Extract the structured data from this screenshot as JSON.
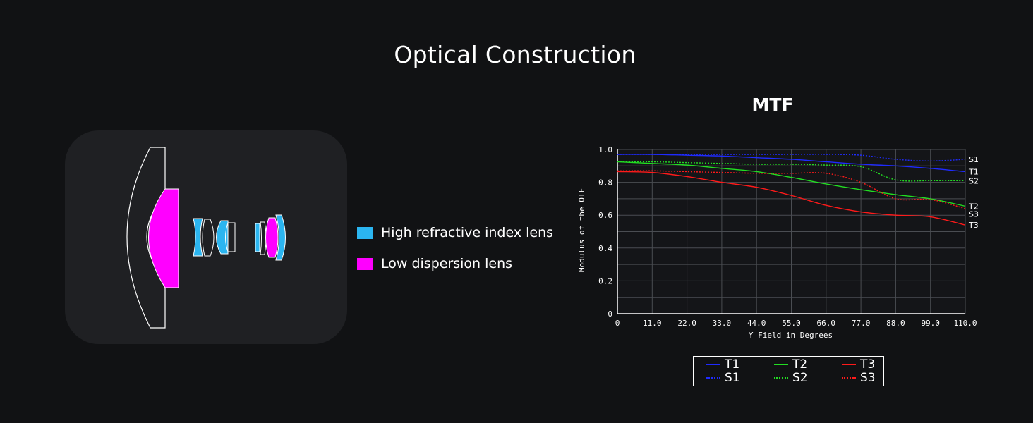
{
  "page": {
    "title": "Optical Construction"
  },
  "lens_legend": [
    {
      "label": "High refractive index lens",
      "color": "#2bb5f0"
    },
    {
      "label": "Low dispersion lens",
      "color": "#ff00ff"
    }
  ],
  "chart_data": {
    "type": "line",
    "title": "MTF",
    "xlabel": "Y Field in Degrees",
    "ylabel": "Modulus of the OTF",
    "xlim": [
      0,
      110
    ],
    "ylim": [
      0,
      1.0
    ],
    "x_ticks": [
      "0",
      "11.0",
      "22.0",
      "33.0",
      "44.0",
      "55.0",
      "66.0",
      "77.0",
      "88.0",
      "99.0",
      "110.0"
    ],
    "y_ticks": [
      "0",
      "0.2",
      "0.4",
      "0.6",
      "0.8",
      "1.0"
    ],
    "grid": true,
    "x": [
      0,
      11,
      22,
      33,
      44,
      55,
      66,
      77,
      88,
      99,
      110
    ],
    "series": [
      {
        "name": "T1",
        "color": "#1f2bff",
        "style": "solid",
        "values": [
          0.97,
          0.97,
          0.965,
          0.96,
          0.95,
          0.94,
          0.925,
          0.91,
          0.9,
          0.885,
          0.865
        ]
      },
      {
        "name": "S1",
        "color": "#1f2bff",
        "style": "dotted",
        "values": [
          0.97,
          0.97,
          0.97,
          0.97,
          0.97,
          0.97,
          0.97,
          0.965,
          0.94,
          0.93,
          0.94
        ]
      },
      {
        "name": "T2",
        "color": "#22dd22",
        "style": "solid",
        "values": [
          0.925,
          0.915,
          0.905,
          0.885,
          0.865,
          0.83,
          0.79,
          0.755,
          0.725,
          0.7,
          0.655
        ]
      },
      {
        "name": "S2",
        "color": "#22dd22",
        "style": "dotted",
        "values": [
          0.925,
          0.925,
          0.92,
          0.915,
          0.91,
          0.91,
          0.905,
          0.895,
          0.815,
          0.81,
          0.81
        ]
      },
      {
        "name": "T3",
        "color": "#ff1a1a",
        "style": "solid",
        "values": [
          0.865,
          0.86,
          0.835,
          0.8,
          0.77,
          0.72,
          0.66,
          0.62,
          0.6,
          0.59,
          0.54
        ]
      },
      {
        "name": "S3",
        "color": "#ff1a1a",
        "style": "dotted",
        "values": [
          0.87,
          0.87,
          0.865,
          0.86,
          0.855,
          0.855,
          0.855,
          0.8,
          0.7,
          0.695,
          0.64
        ]
      }
    ],
    "end_labels": [
      "S1",
      "T1",
      "S2",
      "T2",
      "S3",
      "T3"
    ],
    "legend_position": "bottom"
  }
}
